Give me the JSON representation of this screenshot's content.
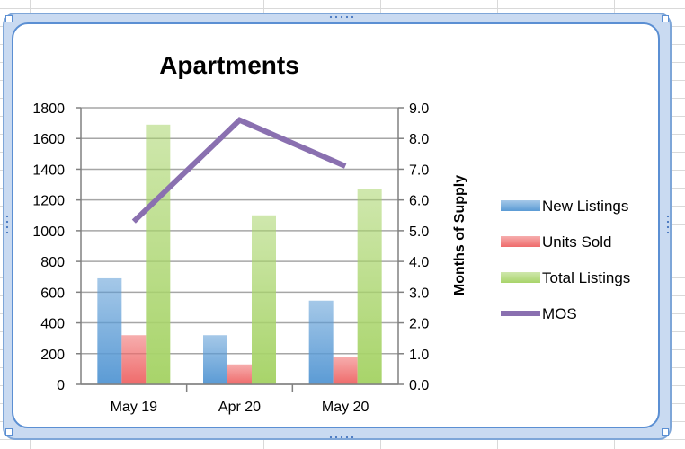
{
  "chart_data": {
    "type": "bar",
    "title": "Apartments",
    "categories": [
      "May 19",
      "Apr 20",
      "May 20"
    ],
    "series": [
      {
        "name": "New Listings",
        "values": [
          690,
          320,
          545
        ],
        "color": "#5b9bd5",
        "axis": "left"
      },
      {
        "name": "Units Sold",
        "values": [
          320,
          130,
          180
        ],
        "color": "#ef6b6b",
        "axis": "left"
      },
      {
        "name": "Total Listings",
        "values": [
          1690,
          1100,
          1270
        ],
        "color": "#a8d46a",
        "axis": "left"
      }
    ],
    "line_series": [
      {
        "name": "MOS",
        "type": "line",
        "values": [
          5.3,
          8.6,
          7.1
        ],
        "color": "#8a70b0",
        "axis": "right"
      }
    ],
    "y_left": {
      "ylim": [
        0,
        1800
      ],
      "ticks": [
        "0",
        "200",
        "400",
        "600",
        "800",
        "1000",
        "1200",
        "1400",
        "1600",
        "1800"
      ]
    },
    "y_right": {
      "ylabel": "Months of Supply",
      "ylim": [
        0,
        9
      ],
      "ticks": [
        "0.0",
        "1.0",
        "2.0",
        "3.0",
        "4.0",
        "5.0",
        "6.0",
        "7.0",
        "8.0",
        "9.0"
      ]
    },
    "grid": true,
    "legend_position": "right"
  }
}
